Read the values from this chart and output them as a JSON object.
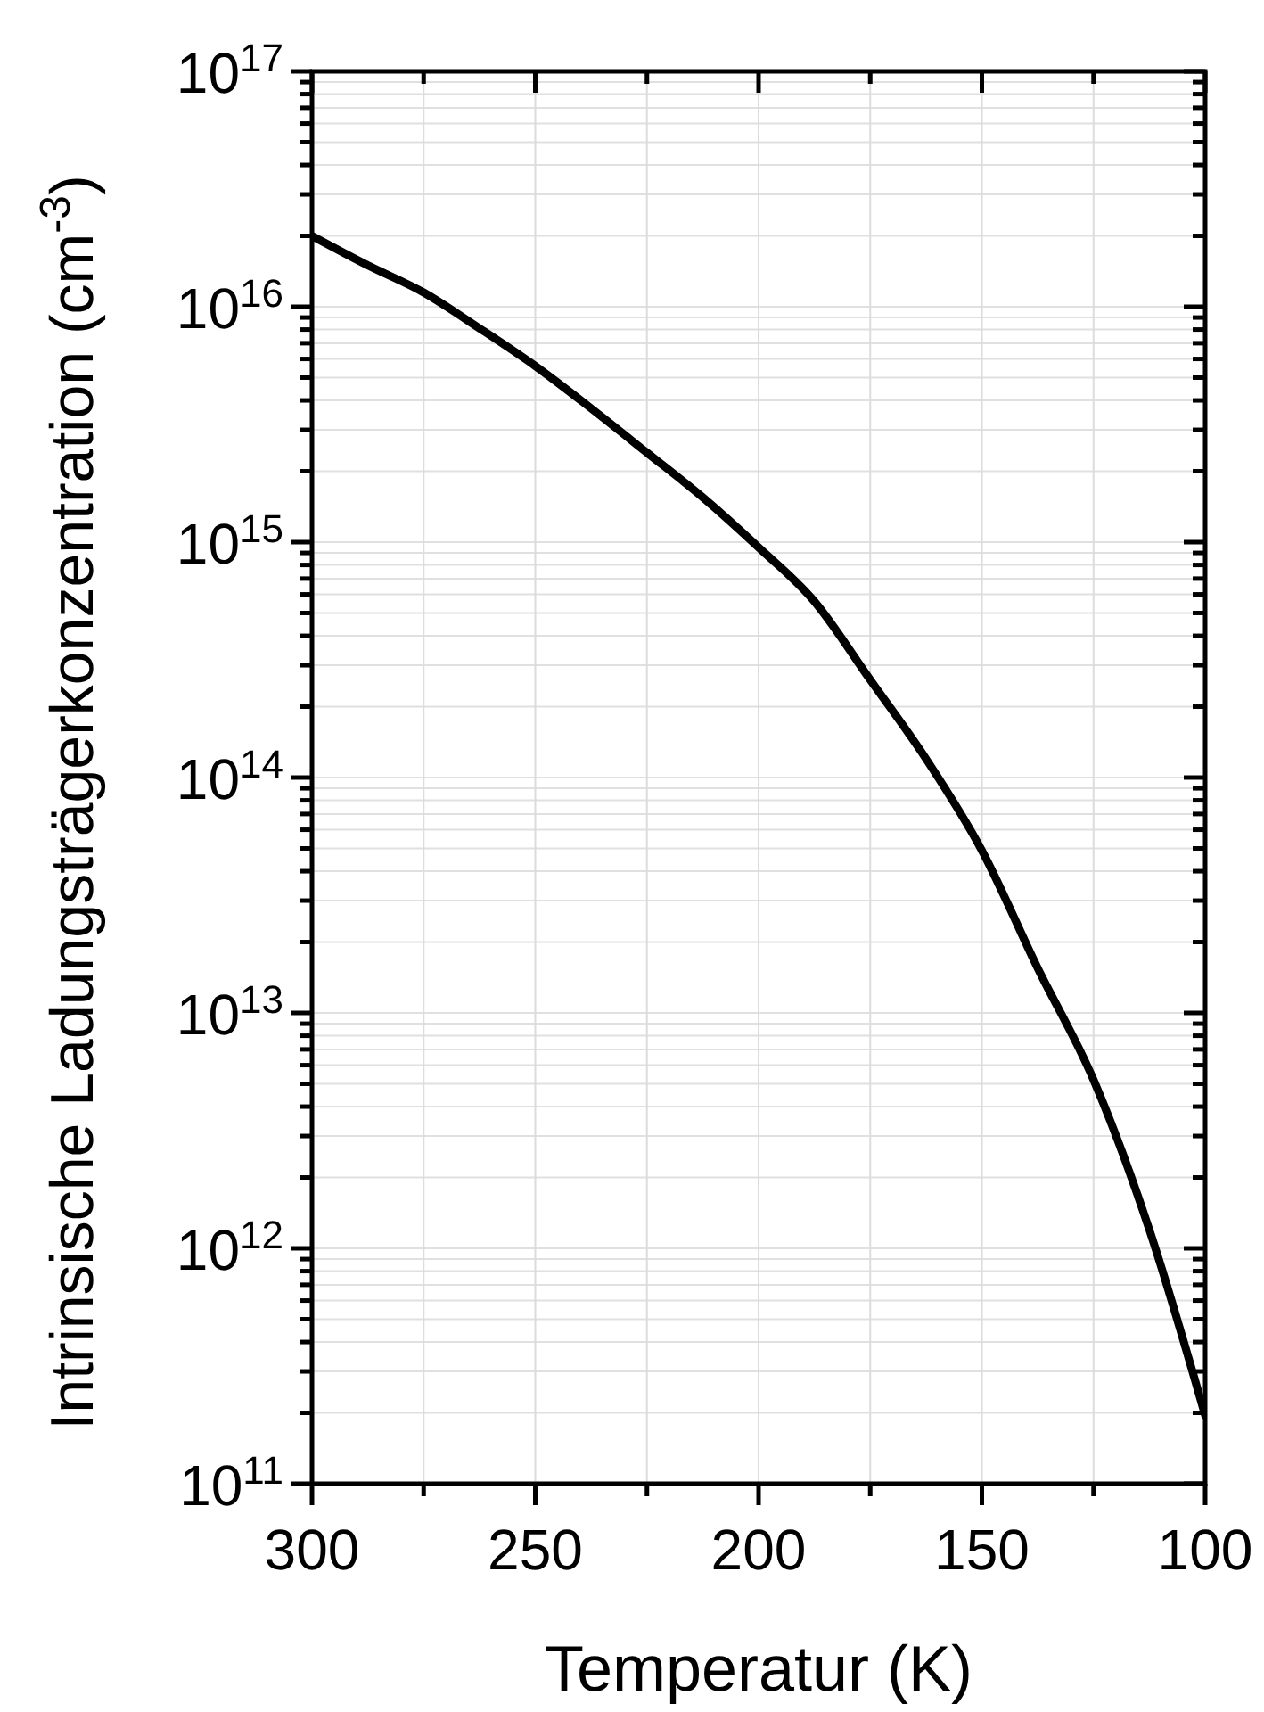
{
  "chart_data": {
    "type": "line",
    "xlabel": "Temperatur (K)",
    "ylabel": "Intrinsische Ladungsträgerkonzentration (cm$^{-3}$)",
    "x": [
      300,
      287.5,
      275,
      262.5,
      250,
      237.5,
      225,
      212.5,
      200,
      187.5,
      175,
      162.5,
      150,
      137.5,
      125,
      112.5,
      100
    ],
    "series": [
      {
        "color": "#000000",
        "values": [
          2e+16,
          1.5e+16,
          1.15e+16,
          8100000000000000.0,
          5600000000000000.0,
          3700000000000000.0,
          2400000000000000.0,
          1550000000000000.0,
          950000000000000.0,
          560000000000000.0,
          260000000000000.0,
          120000000000000.0,
          49000000000000.0,
          15500000000000.0,
          5200000000000.0,
          1200000000000.0,
          195000000000.0
        ]
      }
    ],
    "xlim": [
      300,
      100
    ],
    "xticks": [
      300,
      {
        "value": 275,
        "label": null
      },
      250,
      {
        "value": 225,
        "label": null
      },
      200,
      {
        "value": 175,
        "label": null
      },
      150,
      {
        "value": 125,
        "label": null
      },
      100
    ],
    "ylim": [
      100000000000.0,
      1e+17
    ],
    "yticks": [
      {
        "value": 100000000000.0,
        "label": "10$^{11}$"
      },
      {
        "value": 200000000000.0,
        "label": null
      },
      {
        "value": 300000000000.0,
        "label": null
      },
      {
        "value": 400000000000.0,
        "label": null
      },
      {
        "value": 500000000000.0,
        "label": null
      },
      {
        "value": 600000000000.0,
        "label": null
      },
      {
        "value": 700000000000.0,
        "label": null
      },
      {
        "value": 800000000000.0,
        "label": null
      },
      {
        "value": 900000000000.0,
        "label": null
      },
      {
        "value": 1000000000000.0,
        "label": "10$^{12}$"
      },
      {
        "value": 2000000000000.0,
        "label": null
      },
      {
        "value": 3000000000000.0,
        "label": null
      },
      {
        "value": 4000000000000.0,
        "label": null
      },
      {
        "value": 5000000000000.0,
        "label": null
      },
      {
        "value": 6000000000000.0,
        "label": null
      },
      {
        "value": 7000000000000.0,
        "label": null
      },
      {
        "value": 8000000000000.0,
        "label": null
      },
      {
        "value": 9000000000000.0,
        "label": null
      },
      {
        "value": 10000000000000.0,
        "label": "10$^{13}$"
      },
      {
        "value": 20000000000000.0,
        "label": null
      },
      {
        "value": 30000000000000.0,
        "label": null
      },
      {
        "value": 40000000000000.0,
        "label": null
      },
      {
        "value": 50000000000000.0,
        "label": null
      },
      {
        "value": 60000000000000.0,
        "label": null
      },
      {
        "value": 70000000000000.0,
        "label": null
      },
      {
        "value": 80000000000000.0,
        "label": null
      },
      {
        "value": 90000000000000.0,
        "label": null
      },
      {
        "value": 100000000000000.0,
        "label": "10$^{14}$"
      },
      {
        "value": 200000000000000.0,
        "label": null
      },
      {
        "value": 300000000000000.0,
        "label": null
      },
      {
        "value": 400000000000000.0,
        "label": null
      },
      {
        "value": 500000000000000.0,
        "label": null
      },
      {
        "value": 600000000000000.0,
        "label": null
      },
      {
        "value": 700000000000000.0,
        "label": null
      },
      {
        "value": 800000000000000.0,
        "label": null
      },
      {
        "value": 900000000000000.0,
        "label": null
      },
      {
        "value": 1000000000000000.0,
        "label": "10$^{15}$"
      },
      {
        "value": 2000000000000000.0,
        "label": null
      },
      {
        "value": 3000000000000000.0,
        "label": null
      },
      {
        "value": 4000000000000000.0,
        "label": null
      },
      {
        "value": 5000000000000000.0,
        "label": null
      },
      {
        "value": 6000000000000000.0,
        "label": null
      },
      {
        "value": 7000000000000000.0,
        "label": null
      },
      {
        "value": 8000000000000000.0,
        "label": null
      },
      {
        "value": 9000000000000000.0,
        "label": null
      },
      {
        "value": 1e+16,
        "label": "10$^{16}$"
      },
      {
        "value": 2e+16,
        "label": null
      },
      {
        "value": 3e+16,
        "label": null
      },
      {
        "value": 4e+16,
        "label": null
      },
      {
        "value": 5e+16,
        "label": null
      },
      {
        "value": 6e+16,
        "label": null
      },
      {
        "value": 7e+16,
        "label": null
      },
      {
        "value": 8e+16,
        "label": null
      },
      {
        "value": 9e+16,
        "label": null
      },
      {
        "value": 1e+17,
        "label": "10$^{17}$"
      }
    ],
    "log": "y",
    "grid": true,
    "marker": "none",
    "line_style": "solid"
  }
}
